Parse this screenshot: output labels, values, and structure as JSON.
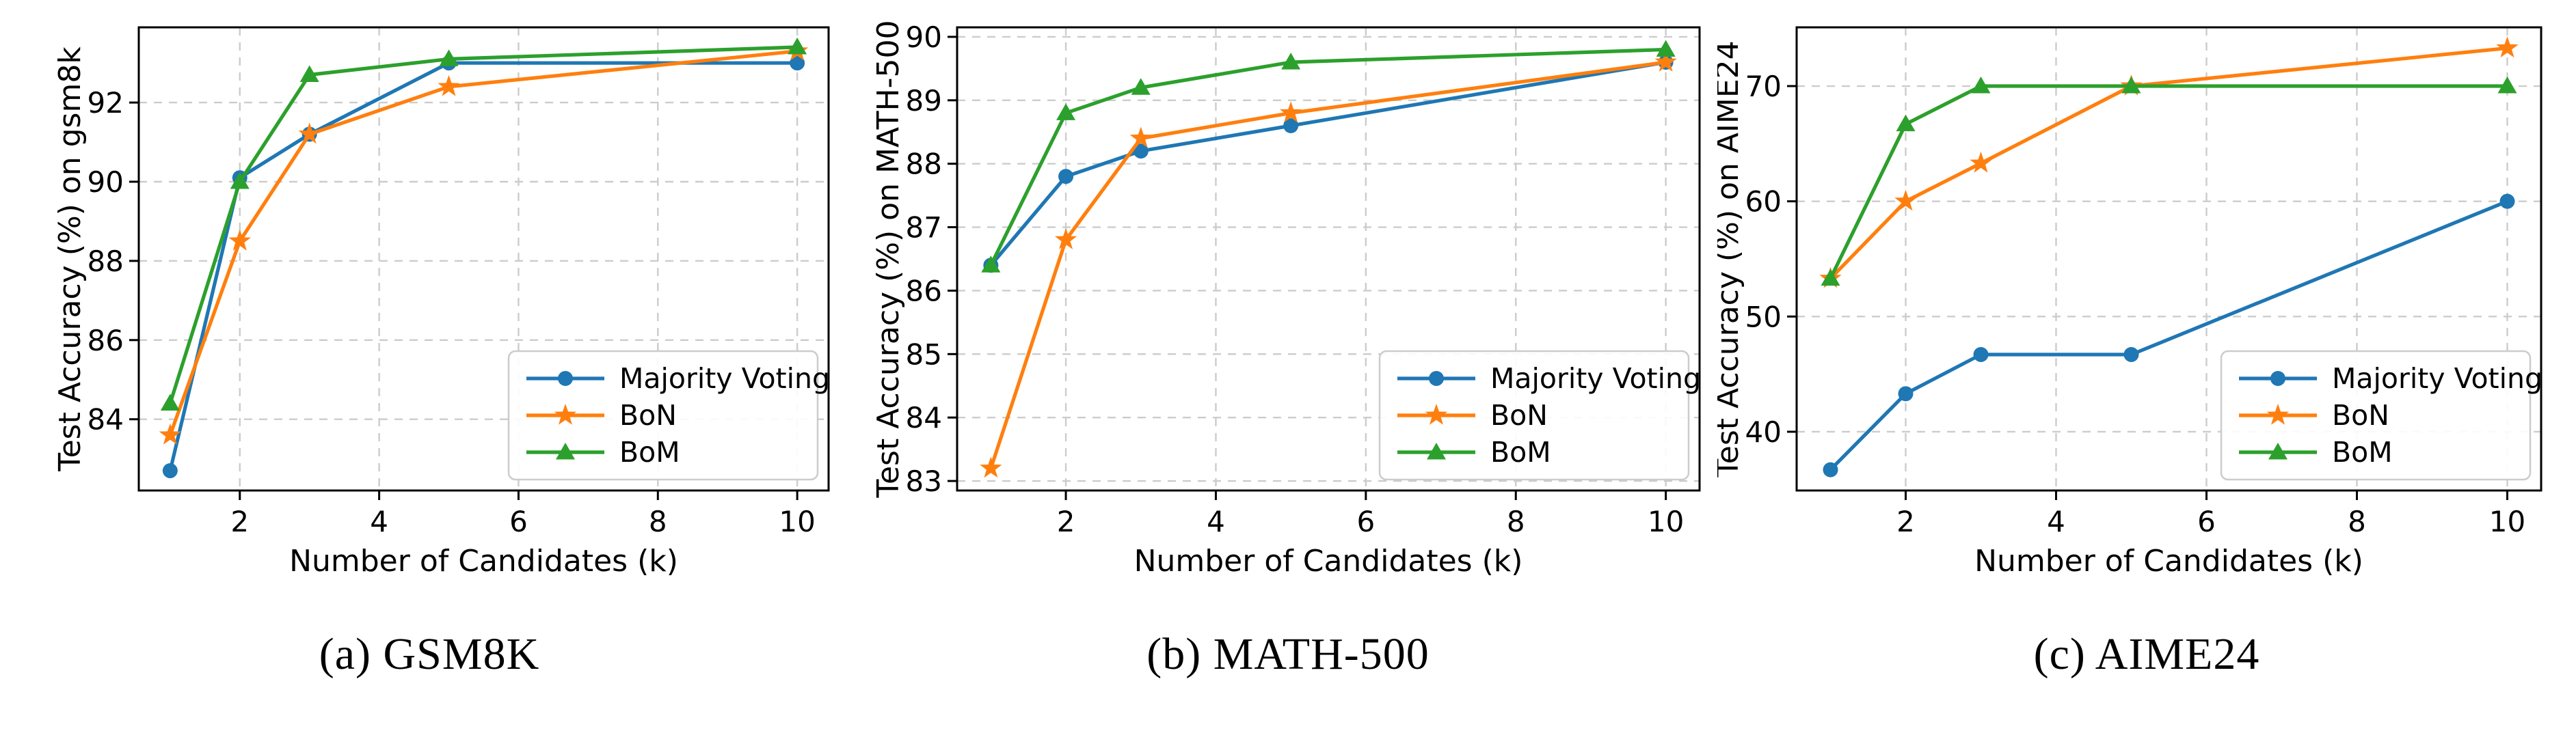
{
  "figure": {
    "background": "#ffffff",
    "description": "Three line charts of test accuracy vs number of candidates"
  },
  "colors": {
    "majority_voting": "#1f77b4",
    "bon": "#ff7f0e",
    "bom": "#2ca02c",
    "grid": "#cccccc",
    "axis": "#000000",
    "text": "#000000",
    "legend_border": "#cccccc"
  },
  "legend": {
    "labels": [
      "Majority Voting",
      "BoN",
      "BoM"
    ],
    "position": "lower right"
  },
  "chart_data": [
    {
      "type": "line",
      "caption": "(a) GSM8K",
      "xlabel": "Number of Candidates (k)",
      "ylabel": "Test Accuracy (%) on gsm8k",
      "x": [
        1,
        2,
        3,
        5,
        10
      ],
      "xticks": [
        2,
        4,
        6,
        8,
        10
      ],
      "yticks": [
        84,
        86,
        88,
        90,
        92
      ],
      "xlim": [
        0.55,
        10.45
      ],
      "ylim": [
        82.2,
        93.9
      ],
      "grid": true,
      "legend_position": "lower right",
      "series": [
        {
          "name": "Majority Voting",
          "color": "#1f77b4",
          "marker": "circle",
          "values": [
            82.7,
            90.1,
            91.2,
            93.0,
            93.0
          ]
        },
        {
          "name": "BoN",
          "color": "#ff7f0e",
          "marker": "star",
          "values": [
            83.6,
            88.5,
            91.2,
            92.4,
            93.3
          ]
        },
        {
          "name": "BoM",
          "color": "#2ca02c",
          "marker": "triangle",
          "values": [
            84.4,
            90.0,
            92.7,
            93.1,
            93.4
          ]
        }
      ]
    },
    {
      "type": "line",
      "caption": "(b) MATH-500",
      "xlabel": "Number of Candidates (k)",
      "ylabel": "Test Accuracy (%) on MATH-500",
      "x": [
        1,
        2,
        3,
        5,
        10
      ],
      "xticks": [
        2,
        4,
        6,
        8,
        10
      ],
      "yticks": [
        83,
        84,
        85,
        86,
        87,
        88,
        89,
        90
      ],
      "xlim": [
        0.55,
        10.45
      ],
      "ylim": [
        82.85,
        90.15
      ],
      "grid": true,
      "legend_position": "lower right",
      "series": [
        {
          "name": "Majority Voting",
          "color": "#1f77b4",
          "marker": "circle",
          "values": [
            86.4,
            87.8,
            88.2,
            88.6,
            89.6
          ]
        },
        {
          "name": "BoN",
          "color": "#ff7f0e",
          "marker": "star",
          "values": [
            83.2,
            86.8,
            88.4,
            88.8,
            89.6
          ]
        },
        {
          "name": "BoM",
          "color": "#2ca02c",
          "marker": "triangle",
          "values": [
            86.4,
            88.8,
            89.2,
            89.6,
            89.8
          ]
        }
      ]
    },
    {
      "type": "line",
      "caption": "(c) AIME24",
      "xlabel": "Number of Candidates (k)",
      "ylabel": "Test Accuracy (%) on AIME24",
      "x": [
        1,
        2,
        3,
        5,
        10
      ],
      "xticks": [
        2,
        4,
        6,
        8,
        10
      ],
      "yticks": [
        40,
        50,
        60,
        70
      ],
      "xlim": [
        0.55,
        10.45
      ],
      "ylim": [
        34.9,
        75.1
      ],
      "grid": true,
      "legend_position": "lower right",
      "series": [
        {
          "name": "Majority Voting",
          "color": "#1f77b4",
          "marker": "circle",
          "values": [
            36.7,
            43.3,
            46.7,
            46.7,
            60.0
          ]
        },
        {
          "name": "BoN",
          "color": "#ff7f0e",
          "marker": "star",
          "values": [
            53.3,
            60.0,
            63.3,
            70.0,
            73.3
          ]
        },
        {
          "name": "BoM",
          "color": "#2ca02c",
          "marker": "triangle",
          "values": [
            53.3,
            66.7,
            70.0,
            70.0,
            70.0
          ]
        }
      ]
    }
  ]
}
